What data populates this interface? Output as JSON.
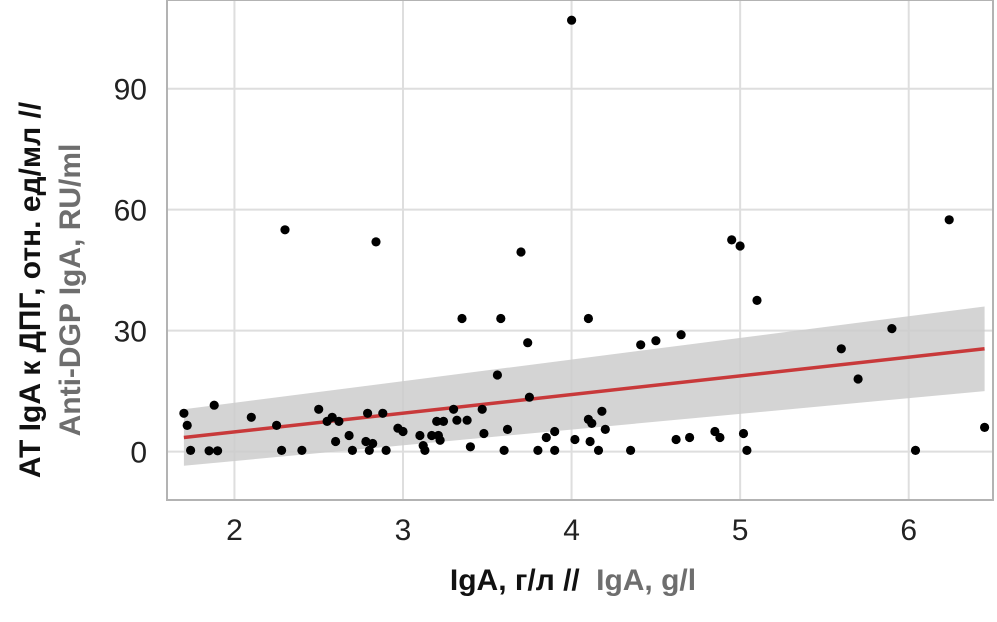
{
  "chart_data": {
    "type": "scatter",
    "title": "",
    "xlabel": {
      "ru": "IgA, г/л //",
      "en": "IgA, g/l"
    },
    "ylabel": {
      "ru": "АТ IgA к ДПГ, отн. ед/мл //",
      "en": "Anti-DGP IgA, RU/ml"
    },
    "xlim": [
      1.6,
      6.5
    ],
    "ylim": [
      -12,
      112
    ],
    "xticks": [
      2,
      3,
      4,
      5,
      6
    ],
    "yticks": [
      0,
      30,
      60,
      90
    ],
    "grid": true,
    "colors": {
      "points": "#000000",
      "regression_line": "#c8393a",
      "confidence_band": "#cccccc",
      "grid": "#dedede",
      "panel_border": "#b3b3b3"
    },
    "regression": {
      "x": [
        1.7,
        6.45
      ],
      "y": [
        3.5,
        25.5
      ],
      "ci_lower": [
        -3.5,
        15.0
      ],
      "ci_upper": [
        10.5,
        36.0
      ]
    },
    "points": [
      [
        1.7,
        9.5
      ],
      [
        1.72,
        6.5
      ],
      [
        1.74,
        0.3
      ],
      [
        1.85,
        0.2
      ],
      [
        1.88,
        11.5
      ],
      [
        1.9,
        0.2
      ],
      [
        2.1,
        8.5
      ],
      [
        2.25,
        6.5
      ],
      [
        2.28,
        0.3
      ],
      [
        2.3,
        55.0
      ],
      [
        2.4,
        0.3
      ],
      [
        2.5,
        10.5
      ],
      [
        2.55,
        7.5
      ],
      [
        2.58,
        8.5
      ],
      [
        2.6,
        2.5
      ],
      [
        2.62,
        7.5
      ],
      [
        2.68,
        4.0
      ],
      [
        2.7,
        0.3
      ],
      [
        2.78,
        2.5
      ],
      [
        2.79,
        9.5
      ],
      [
        2.8,
        0.3
      ],
      [
        2.82,
        2.0
      ],
      [
        2.84,
        52.0
      ],
      [
        2.88,
        9.5
      ],
      [
        2.9,
        0.3
      ],
      [
        2.97,
        5.8
      ],
      [
        3.0,
        5.0
      ],
      [
        3.1,
        4.0
      ],
      [
        3.12,
        1.5
      ],
      [
        3.13,
        0.3
      ],
      [
        3.17,
        4.0
      ],
      [
        3.2,
        7.5
      ],
      [
        3.21,
        4.0
      ],
      [
        3.22,
        2.8
      ],
      [
        3.24,
        7.5
      ],
      [
        3.3,
        10.5
      ],
      [
        3.32,
        7.8
      ],
      [
        3.35,
        33.0
      ],
      [
        3.38,
        7.8
      ],
      [
        3.4,
        1.2
      ],
      [
        3.47,
        10.5
      ],
      [
        3.48,
        4.5
      ],
      [
        3.56,
        19.0
      ],
      [
        3.58,
        33.0
      ],
      [
        3.6,
        0.3
      ],
      [
        3.62,
        5.5
      ],
      [
        3.7,
        49.5
      ],
      [
        3.74,
        27.0
      ],
      [
        3.75,
        13.5
      ],
      [
        3.8,
        0.3
      ],
      [
        3.85,
        3.5
      ],
      [
        3.9,
        0.3
      ],
      [
        3.9,
        5.0
      ],
      [
        4.0,
        107.0
      ],
      [
        4.02,
        3.0
      ],
      [
        4.1,
        33.0
      ],
      [
        4.1,
        8.0
      ],
      [
        4.11,
        2.5
      ],
      [
        4.12,
        7.0
      ],
      [
        4.16,
        0.3
      ],
      [
        4.18,
        10.0
      ],
      [
        4.2,
        5.5
      ],
      [
        4.35,
        0.3
      ],
      [
        4.41,
        26.5
      ],
      [
        4.5,
        27.5
      ],
      [
        4.62,
        3.0
      ],
      [
        4.65,
        29.0
      ],
      [
        4.7,
        3.5
      ],
      [
        4.85,
        5.0
      ],
      [
        4.88,
        3.5
      ],
      [
        4.95,
        52.5
      ],
      [
        5.0,
        51.0
      ],
      [
        5.02,
        4.5
      ],
      [
        5.04,
        0.3
      ],
      [
        5.1,
        37.5
      ],
      [
        5.6,
        25.5
      ],
      [
        5.7,
        18.0
      ],
      [
        5.9,
        30.5
      ],
      [
        6.04,
        0.3
      ],
      [
        6.24,
        57.5
      ],
      [
        6.45,
        6.0
      ]
    ]
  }
}
